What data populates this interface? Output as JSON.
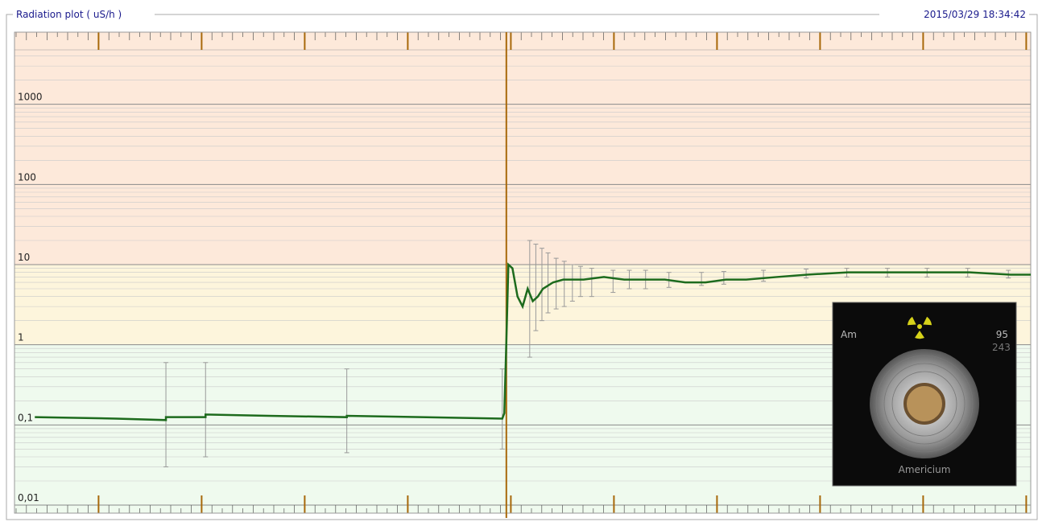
{
  "chart_data": {
    "type": "line",
    "title": "Radiation plot ( uS/h )",
    "timestamp": "2015/03/29 18:34:42",
    "log_y": true,
    "grid": true,
    "ylim": [
      0.01,
      10000
    ],
    "yticks": [
      {
        "value": 0.01,
        "label": "0,01"
      },
      {
        "value": 0.1,
        "label": "0,1"
      },
      1,
      10,
      100,
      1000
    ],
    "xlim": [
      0,
      100
    ],
    "zones": [
      {
        "from": 0.01,
        "to": 1,
        "color": "#effaee"
      },
      {
        "from": 1,
        "to": 10,
        "color": "#fdf5dc"
      },
      {
        "from": 10,
        "to": 10000,
        "color": "#fde9da"
      }
    ],
    "cursor_x": 48.4,
    "cursor_color": "#a8680a",
    "series": [
      {
        "name": "Radiation",
        "color": "#1d6b1d",
        "x": [
          2,
          10,
          14.9,
          14.9,
          18.8,
          18.8,
          25,
          32.7,
          32.7,
          40,
          48.0,
          48.2,
          48.4,
          48.6,
          49,
          49.5,
          50,
          50.5,
          51,
          51.5,
          52,
          53,
          54,
          56,
          58,
          60,
          62,
          64,
          66,
          68,
          70,
          72,
          75,
          78,
          82,
          86,
          90,
          94,
          98,
          100
        ],
        "values": [
          0.125,
          0.12,
          0.115,
          0.125,
          0.125,
          0.135,
          0.13,
          0.125,
          0.13,
          0.125,
          0.12,
          0.14,
          1.1,
          10,
          9,
          4,
          3,
          5,
          3.5,
          4,
          5,
          6,
          6.5,
          6.5,
          7,
          6.5,
          6.5,
          6.5,
          6,
          6,
          6.5,
          6.5,
          7,
          7.5,
          8,
          8,
          8,
          8,
          7.5,
          7.5
        ]
      }
    ],
    "error_bars": {
      "color": "#999999",
      "x": [
        14.9,
        18.8,
        32.7,
        48.0,
        50.7,
        51.3,
        51.9,
        52.5,
        53.3,
        54.1,
        54.9,
        55.7,
        56.8,
        58.9,
        60.5,
        62.1,
        64.4,
        67.6,
        69.8,
        73.7,
        77.9,
        81.9,
        85.9,
        89.8,
        93.8,
        97.8
      ],
      "low": [
        0.03,
        0.04,
        0.045,
        0.05,
        0.7,
        1.5,
        2,
        2.5,
        2.8,
        3,
        3.5,
        4,
        4,
        4.5,
        5,
        5,
        5.2,
        5.5,
        5.7,
        6.2,
        6.8,
        7,
        7,
        7,
        7,
        6.8
      ],
      "high": [
        0.6,
        0.6,
        0.5,
        0.5,
        20,
        18,
        16,
        14,
        12,
        11,
        10,
        9.5,
        9,
        8.5,
        8.5,
        8.5,
        8,
        8,
        8.2,
        8.5,
        8.8,
        9,
        9,
        9,
        9,
        8.5
      ]
    },
    "inset": {
      "symbol": "Am",
      "number": "95",
      "mass": "243",
      "name": "Americium"
    }
  }
}
